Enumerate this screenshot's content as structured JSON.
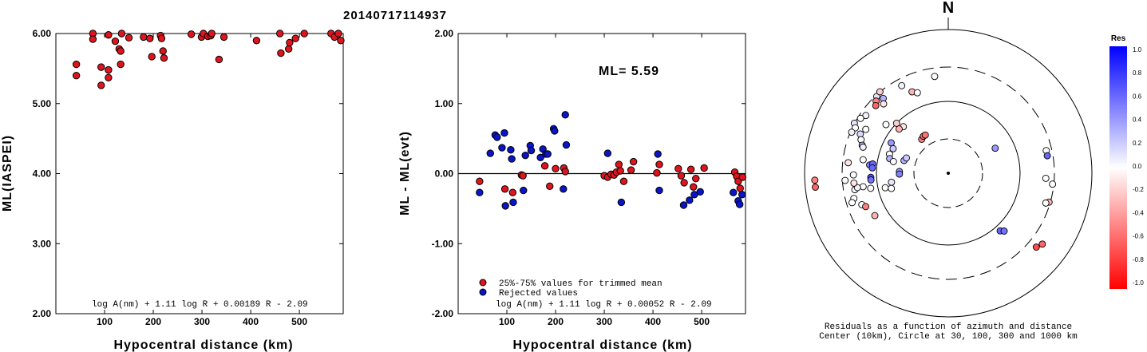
{
  "title": "20140717114937",
  "chart_data": [
    {
      "type": "scatter",
      "xlabel": "Hypocentral distance (km)",
      "ylabel": "ML(IASPEI)",
      "xlim": [
        0,
        590
      ],
      "ylim": [
        2.0,
        6.0
      ],
      "xticks": [
        100,
        200,
        300,
        400,
        500
      ],
      "yticks": [
        2.0,
        3.0,
        4.0,
        5.0,
        6.0
      ],
      "ytick_labels": [
        "2.00",
        "3.00",
        "4.00",
        "5.00",
        "6.00"
      ],
      "formula": "log A(nm) + 1.11 log R + 0.00189 R - 2.09",
      "marker_color": "#e0141e",
      "points": [
        [
          42,
          5.56
        ],
        [
          42,
          5.4
        ],
        [
          76,
          6.0
        ],
        [
          76,
          5.92
        ],
        [
          93,
          5.52
        ],
        [
          93,
          5.26
        ],
        [
          108,
          5.98
        ],
        [
          108,
          5.48
        ],
        [
          108,
          5.37
        ],
        [
          122,
          5.89
        ],
        [
          130,
          5.78
        ],
        [
          133,
          5.75
        ],
        [
          133,
          5.56
        ],
        [
          135,
          6.0
        ],
        [
          150,
          5.94
        ],
        [
          180,
          5.95
        ],
        [
          193,
          5.93
        ],
        [
          197,
          5.67
        ],
        [
          215,
          5.97
        ],
        [
          217,
          5.93
        ],
        [
          220,
          5.75
        ],
        [
          222,
          5.65
        ],
        [
          278,
          5.99
        ],
        [
          299,
          5.95
        ],
        [
          303,
          6.0
        ],
        [
          312,
          5.96
        ],
        [
          318,
          5.97
        ],
        [
          320,
          6.0
        ],
        [
          335,
          5.63
        ],
        [
          345,
          5.95
        ],
        [
          412,
          5.9
        ],
        [
          460,
          6.0
        ],
        [
          462,
          5.72
        ],
        [
          478,
          5.78
        ],
        [
          480,
          5.87
        ],
        [
          492,
          5.93
        ],
        [
          510,
          6.0
        ],
        [
          565,
          6.0
        ],
        [
          572,
          5.95
        ],
        [
          580,
          6.0
        ],
        [
          585,
          5.9
        ]
      ]
    },
    {
      "type": "scatter",
      "xlabel": "Hypocentral distance (km)",
      "ylabel": "ML - ML(evt)",
      "xlim": [
        0,
        590
      ],
      "ylim": [
        -2.0,
        2.0
      ],
      "xticks": [
        100,
        200,
        300,
        400,
        500
      ],
      "yticks": [
        -2.0,
        -1.0,
        0.0,
        1.0,
        2.0
      ],
      "ytick_labels": [
        "-2.00",
        "-1.00",
        "0.00",
        "1.00",
        "2.00"
      ],
      "ml_label": "ML= 5.59",
      "formula": "log A(nm) + 1.11 log R + 0.00052 R - 2.09",
      "legend": [
        {
          "label": "25%-75% values for trimmed mean",
          "color": "#e0141e"
        },
        {
          "label": "Rejected values",
          "color": "#0a14c8"
        }
      ],
      "series": [
        {
          "name": "25%-75% values for trimmed mean",
          "color": "#e0141e",
          "points": [
            [
              44,
              -0.11
            ],
            [
              96,
              -0.22
            ],
            [
              112,
              -0.27
            ],
            [
              130,
              -0.02
            ],
            [
              133,
              -0.03
            ],
            [
              178,
              0.11
            ],
            [
              188,
              -0.18
            ],
            [
              200,
              0.07
            ],
            [
              217,
              0.08
            ],
            [
              220,
              0.03
            ],
            [
              300,
              -0.03
            ],
            [
              307,
              -0.05
            ],
            [
              314,
              -0.01
            ],
            [
              320,
              -0.02
            ],
            [
              325,
              0.02
            ],
            [
              330,
              0.13
            ],
            [
              333,
              0.04
            ],
            [
              340,
              -0.11
            ],
            [
              355,
              0.05
            ],
            [
              360,
              0.17
            ],
            [
              408,
              0.01
            ],
            [
              413,
              0.13
            ],
            [
              452,
              0.07
            ],
            [
              458,
              -0.03
            ],
            [
              464,
              -0.13
            ],
            [
              478,
              0.06
            ],
            [
              483,
              -0.19
            ],
            [
              488,
              -0.07
            ],
            [
              505,
              0.08
            ],
            [
              568,
              0.02
            ],
            [
              572,
              -0.04
            ],
            [
              575,
              -0.11
            ],
            [
              579,
              -0.21
            ],
            [
              584,
              -0.05
            ]
          ]
        },
        {
          "name": "Rejected values",
          "color": "#0a14c8",
          "points": [
            [
              44,
              -0.27
            ],
            [
              66,
              0.29
            ],
            [
              76,
              0.55
            ],
            [
              80,
              0.52
            ],
            [
              90,
              0.37
            ],
            [
              95,
              0.58
            ],
            [
              97,
              -0.46
            ],
            [
              108,
              0.34
            ],
            [
              110,
              0.21
            ],
            [
              113,
              -0.41
            ],
            [
              134,
              -0.24
            ],
            [
              138,
              0.26
            ],
            [
              148,
              0.4
            ],
            [
              150,
              0.33
            ],
            [
              169,
              0.23
            ],
            [
              174,
              0.35
            ],
            [
              180,
              0.28
            ],
            [
              184,
              0.28
            ],
            [
              196,
              0.64
            ],
            [
              198,
              0.61
            ],
            [
              216,
              -0.22
            ],
            [
              220,
              0.84
            ],
            [
              222,
              0.41
            ],
            [
              307,
              0.29
            ],
            [
              335,
              -0.41
            ],
            [
              410,
              0.28
            ],
            [
              413,
              -0.24
            ],
            [
              463,
              -0.45
            ],
            [
              475,
              -0.38
            ],
            [
              485,
              -0.3
            ],
            [
              497,
              -0.26
            ],
            [
              565,
              -0.27
            ],
            [
              575,
              -0.39
            ],
            [
              578,
              -0.44
            ],
            [
              583,
              -0.3
            ]
          ]
        }
      ]
    },
    {
      "type": "polar",
      "north_label": "N",
      "caption": [
        "Residuals as a function of azimuth and distance",
        "Center (10km), Circle at 30, 100, 300 and 1000 km"
      ],
      "colorbar": {
        "title": "Res",
        "ticks": [
          "1.0",
          "0.8",
          "0.6",
          "0.4",
          "0.2",
          "0.0",
          "-0.2",
          "-0.4",
          "-0.6",
          "-0.8",
          "-1.0"
        ],
        "max_color": "#0000ff",
        "mid_color": "#ffffff",
        "min_color": "#ff0000"
      },
      "points": [
        {
          "azimuth": -8,
          "distance": 0.68,
          "residual": 0.0
        },
        {
          "azimuth": -28,
          "distance": 0.69,
          "residual": 0.05
        },
        {
          "azimuth": -24,
          "distance": 0.62,
          "residual": -0.3
        },
        {
          "azimuth": -21,
          "distance": 0.6,
          "residual": 0.0
        },
        {
          "azimuth": -43,
          "distance": 0.73,
          "residual": 0.1
        },
        {
          "azimuth": -40,
          "distance": 0.74,
          "residual": -0.2
        },
        {
          "azimuth": -45,
          "distance": 0.71,
          "residual": -0.5
        },
        {
          "azimuth": -47,
          "distance": 0.69,
          "residual": -0.6
        },
        {
          "azimuth": -41,
          "distance": 0.69,
          "residual": 0.3
        },
        {
          "azimuth": -43,
          "distance": 0.66,
          "residual": -0.1
        },
        {
          "azimuth": -55,
          "distance": 0.7,
          "residual": 0.05
        },
        {
          "azimuth": -58,
          "distance": 0.72,
          "residual": 0.0
        },
        {
          "azimuth": -62,
          "distance": 0.74,
          "residual": 0.1
        },
        {
          "azimuth": -64,
          "distance": 0.72,
          "residual": 0.0
        },
        {
          "azimuth": -67,
          "distance": 0.73,
          "residual": 0.05
        },
        {
          "azimuth": -62,
          "distance": 0.65,
          "residual": 0.0
        },
        {
          "azimuth": -66,
          "distance": 0.67,
          "residual": 0.15
        },
        {
          "azimuth": -69,
          "distance": 0.65,
          "residual": 0.0
        },
        {
          "azimuth": -72,
          "distance": 0.63,
          "residual": 0.3
        },
        {
          "azimuth": -73,
          "distance": 0.62,
          "residual": 0.05
        },
        {
          "azimuth": -52,
          "distance": 0.55,
          "residual": 0.0
        },
        {
          "azimuth": -46,
          "distance": 0.5,
          "residual": -0.2
        },
        {
          "azimuth": -44,
          "distance": 0.45,
          "residual": -0.1
        },
        {
          "azimuth": -48,
          "distance": 0.46,
          "residual": -0.3
        },
        {
          "azimuth": -38,
          "distance": 0.3,
          "residual": -0.5
        },
        {
          "azimuth": -34,
          "distance": 0.31,
          "residual": -0.6
        },
        {
          "azimuth": -31,
          "distance": 0.31,
          "residual": -0.55
        },
        {
          "azimuth": -62,
          "distance": 0.45,
          "residual": 0.4
        },
        {
          "azimuth": -66,
          "distance": 0.42,
          "residual": 0.2
        },
        {
          "azimuth": -72,
          "distance": 0.43,
          "residual": 0.0
        },
        {
          "azimuth": -76,
          "distance": 0.42,
          "residual": 0.3
        },
        {
          "azimuth": -74,
          "distance": 0.32,
          "residual": 0.3
        },
        {
          "azimuth": -70,
          "distance": 0.31,
          "residual": 0.2
        },
        {
          "azimuth": -78,
          "distance": 0.39,
          "residual": 0.0
        },
        {
          "azimuth": -81,
          "distance": 0.6,
          "residual": 0.0
        },
        {
          "azimuth": -84,
          "distance": 0.55,
          "residual": 0.5
        },
        {
          "azimuth": -83,
          "distance": 0.53,
          "residual": 0.6
        },
        {
          "azimuth": -86,
          "distance": 0.53,
          "residual": 0.6
        },
        {
          "azimuth": -93,
          "distance": 0.54,
          "residual": 0.7
        },
        {
          "azimuth": -95,
          "distance": 0.54,
          "residual": 0.55
        },
        {
          "azimuth": -88,
          "distance": 0.34,
          "residual": 0.4
        },
        {
          "azimuth": -91,
          "distance": 0.34,
          "residual": 0.5
        },
        {
          "azimuth": -91,
          "distance": 0.66,
          "residual": 0.0
        },
        {
          "azimuth": -100,
          "distance": 0.66,
          "residual": 0.0
        },
        {
          "azimuth": -99,
          "distance": 0.6,
          "residual": 0.0
        },
        {
          "azimuth": -101,
          "distance": 0.55,
          "residual": 0.0
        },
        {
          "azimuth": -99,
          "distance": 0.64,
          "residual": 0.05
        },
        {
          "azimuth": -96,
          "distance": 0.66,
          "residual": -0.1
        },
        {
          "azimuth": -94,
          "distance": 0.72,
          "residual": 0.0
        },
        {
          "azimuth": -84,
          "distance": 0.7,
          "residual": -0.1
        },
        {
          "azimuth": -105,
          "distance": 0.68,
          "residual": 0.0
        },
        {
          "azimuth": -107,
          "distance": 0.7,
          "residual": 0.0
        },
        {
          "azimuth": -110,
          "distance": 0.64,
          "residual": 0.0
        },
        {
          "azimuth": -112,
          "distance": 0.62,
          "residual": -0.5
        },
        {
          "azimuth": -96,
          "distance": 0.93,
          "residual": -0.6
        },
        {
          "azimuth": -93,
          "distance": 0.93,
          "residual": -0.5
        },
        {
          "azimuth": -103,
          "distance": 0.45,
          "residual": 0.0
        },
        {
          "azimuth": -105,
          "distance": 0.41,
          "residual": 0.0
        },
        {
          "azimuth": -120,
          "distance": 0.59,
          "residual": -0.3
        },
        {
          "azimuth": -99,
          "distance": 0.4,
          "residual": 0.1
        },
        {
          "azimuth": 62,
          "distance": 0.37,
          "residual": 0.4
        },
        {
          "azimuth": 77,
          "distance": 0.7,
          "residual": 0.0
        },
        {
          "azimuth": 80,
          "distance": 0.7,
          "residual": 0.6
        },
        {
          "azimuth": 93,
          "distance": 0.68,
          "residual": 0.0
        },
        {
          "azimuth": 96,
          "distance": 0.73,
          "residual": 0.0
        },
        {
          "azimuth": 106,
          "distance": 0.73,
          "residual": -0.3
        },
        {
          "azimuth": 107,
          "distance": 0.71,
          "residual": 0.0
        },
        {
          "azimuth": 138,
          "distance": 0.54,
          "residual": 0.6
        },
        {
          "azimuth": 136,
          "distance": 0.56,
          "residual": 0.55
        },
        {
          "azimuth": 127,
          "distance": 0.82,
          "residual": -0.6
        },
        {
          "azimuth": 130,
          "distance": 0.8,
          "residual": -0.7
        }
      ]
    }
  ]
}
